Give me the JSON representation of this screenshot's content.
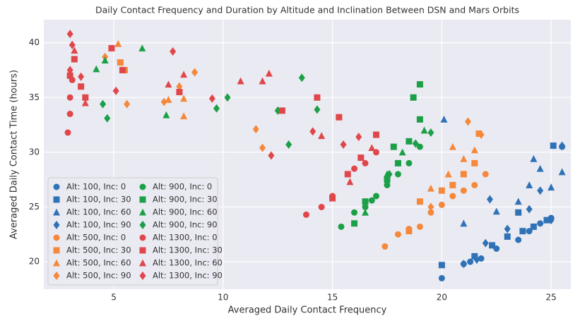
{
  "chart_data": {
    "type": "scatter",
    "title": "Daily Contact Frequency and Duration by Altitude and Inclination Between DSN and Mars Orbits",
    "x_label": "Averaged Daily Contact Frequency",
    "y_label": "Averaged Daily Contact Time (hours)",
    "xlim": [
      1.8,
      25.9
    ],
    "ylim": [
      17.5,
      42.1
    ],
    "xticks": [
      5,
      10,
      15,
      20,
      25
    ],
    "yticks": [
      20,
      25,
      30,
      35,
      40
    ],
    "grid": true,
    "legend": "lower left",
    "series": [
      {
        "name": "Alt: 100, Inc: 0",
        "color": "#2f72b6",
        "marker": "circle",
        "x": [
          20,
          21,
          21.3,
          21.8,
          22.5,
          23.5,
          24,
          24.5,
          25,
          25.5
        ],
        "values": [
          18.5,
          19.8,
          20,
          20.3,
          21.2,
          22,
          22.8,
          23.5,
          24,
          30.5
        ]
      },
      {
        "name": "Alt: 100, Inc: 30",
        "color": "#2f72b6",
        "marker": "square",
        "x": [
          20,
          21.5,
          22.3,
          23,
          23.7,
          24.2,
          24.8,
          25.1,
          23.5
        ],
        "values": [
          19.7,
          20.5,
          21.5,
          22.3,
          22.8,
          23.2,
          23.8,
          30.6,
          24.5
        ]
      },
      {
        "name": "Alt: 100, Inc: 60",
        "color": "#2f72b6",
        "marker": "triangle",
        "x": [
          20.1,
          21,
          22.5,
          23.5,
          24,
          24.5,
          25.5,
          25,
          24.2
        ],
        "values": [
          33,
          23.5,
          24.6,
          25.5,
          27,
          28.5,
          28.2,
          26.8,
          29.4
        ]
      },
      {
        "name": "Alt: 100, Inc: 90",
        "color": "#2f72b6",
        "marker": "diamond",
        "x": [
          21,
          21.6,
          22,
          22.2,
          23,
          24,
          25,
          25.5,
          24.5
        ],
        "values": [
          19.8,
          20.2,
          21.7,
          25.7,
          23,
          24.8,
          23.8,
          30.6,
          26.5
        ]
      },
      {
        "name": "Alt: 500, Inc: 0",
        "color": "#f5883a",
        "marker": "circle",
        "x": [
          17.4,
          18,
          18.5,
          19,
          19.5,
          20,
          20.5,
          21,
          21.5,
          22
        ],
        "values": [
          21.4,
          22.5,
          23,
          23.2,
          24.5,
          25.2,
          26,
          26.5,
          27,
          28
        ]
      },
      {
        "name": "Alt: 500, Inc: 30",
        "color": "#f5883a",
        "marker": "square",
        "x": [
          5.3,
          5.5,
          20.5,
          21,
          21.5,
          20,
          18.5,
          19,
          21.7
        ],
        "values": [
          38.2,
          37.5,
          27,
          28,
          29,
          26.5,
          22.8,
          25.5,
          31.7
        ]
      },
      {
        "name": "Alt: 500, Inc: 60",
        "color": "#f5883a",
        "marker": "triangle",
        "x": [
          5.2,
          7.5,
          8.2,
          8.2,
          19.5,
          20.3,
          21,
          20.5,
          21.5
        ],
        "values": [
          39.9,
          34.8,
          33.3,
          34.9,
          26.7,
          28,
          29.4,
          30.5,
          30.2
        ]
      },
      {
        "name": "Alt: 500, Inc: 90",
        "color": "#f5883a",
        "marker": "diamond",
        "x": [
          4.6,
          5.6,
          7.3,
          8,
          8.7,
          11.5,
          11.8,
          21.2,
          21.8,
          19.5
        ],
        "values": [
          38.7,
          34.4,
          34.6,
          36,
          37.3,
          32.1,
          30.4,
          32.8,
          31.6,
          25
        ]
      },
      {
        "name": "Alt: 900, Inc: 0",
        "color": "#1ca047",
        "marker": "circle",
        "x": [
          15.4,
          16,
          16.5,
          17,
          17.5,
          18,
          18.5,
          19,
          16.8
        ],
        "values": [
          23.2,
          24.5,
          25,
          26,
          27,
          28,
          29,
          30.5,
          25.6
        ]
      },
      {
        "name": "Alt: 900, Inc: 30",
        "color": "#1ca047",
        "marker": "square",
        "x": [
          16,
          16.5,
          17.5,
          18,
          18.5,
          19,
          18.7,
          19,
          17.8
        ],
        "values": [
          23.5,
          25.5,
          27.5,
          29,
          31,
          33,
          35,
          36.2,
          30.5
        ]
      },
      {
        "name": "Alt: 900, Inc: 60",
        "color": "#1ca047",
        "marker": "triangle",
        "x": [
          4.2,
          4.6,
          6.3,
          7.4,
          16.5,
          17.5,
          18.2,
          19.2
        ],
        "values": [
          37.6,
          38.4,
          39.5,
          33.4,
          24.5,
          28,
          30,
          32
        ]
      },
      {
        "name": "Alt: 900, Inc: 90",
        "color": "#1ca047",
        "marker": "diamond",
        "x": [
          4.5,
          4.7,
          9.7,
          10.2,
          12.5,
          13,
          13.6,
          14.3,
          17.6,
          18.8,
          19.5
        ],
        "values": [
          34.4,
          33.1,
          34,
          35,
          33.8,
          30.7,
          36.8,
          33.9,
          28,
          30.8,
          31.8
        ]
      },
      {
        "name": "Alt: 1300, Inc: 0",
        "color": "#e0474a",
        "marker": "circle",
        "x": [
          2.9,
          3,
          3,
          3.1,
          13.8,
          14.5,
          15,
          16,
          16.5,
          17
        ],
        "values": [
          31.8,
          33.5,
          35,
          36.6,
          24.3,
          25,
          26,
          28.5,
          29,
          30
        ]
      },
      {
        "name": "Alt: 1300, Inc: 30",
        "color": "#e0474a",
        "marker": "square",
        "x": [
          3,
          3.2,
          3.5,
          3.7,
          4.9,
          5.4,
          8,
          12.7,
          14.3,
          15.3,
          15,
          15.7,
          16.3,
          17
        ],
        "values": [
          37,
          38.5,
          36,
          35,
          39.5,
          37.5,
          35.5,
          33.8,
          35,
          33.2,
          25.8,
          28,
          29.5,
          31.6
        ]
      },
      {
        "name": "Alt: 1300, Inc: 60",
        "color": "#e0474a",
        "marker": "triangle",
        "x": [
          3.2,
          3.7,
          7.5,
          8.2,
          10.8,
          11.8,
          12.1,
          14.5,
          15.8,
          16.8
        ],
        "values": [
          39.3,
          34.5,
          36.2,
          37.1,
          36.5,
          36.5,
          37.2,
          31.5,
          27.3,
          30.4
        ]
      },
      {
        "name": "Alt: 1300, Inc: 90",
        "color": "#e0474a",
        "marker": "diamond",
        "x": [
          3,
          3.1,
          3,
          3.5,
          5.1,
          7.7,
          9.5,
          12.2,
          14.1,
          15.5,
          16.2
        ],
        "values": [
          40.8,
          39.8,
          37.5,
          36.9,
          35.6,
          39.2,
          34.9,
          29.7,
          31.9,
          30.7,
          31.4
        ]
      }
    ]
  }
}
